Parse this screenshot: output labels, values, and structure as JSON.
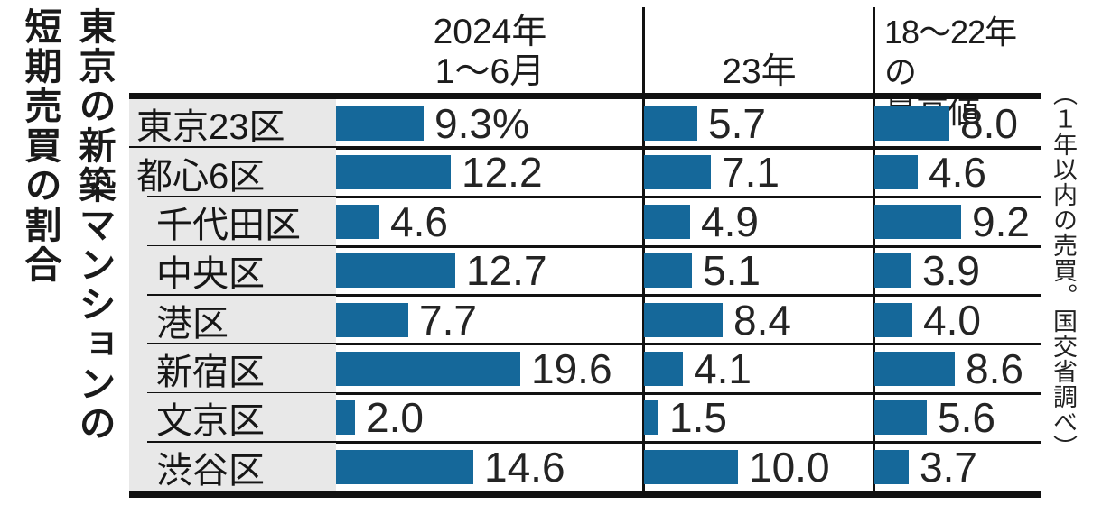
{
  "title": "東京の新築マンションの短期売買の割合",
  "title_lines": [
    "東京の新築マンションの",
    "短期売買の割合"
  ],
  "source_note": "（１年以内の売買。国交省調べ）",
  "columns": [
    {
      "line1": "2024年",
      "line2": "1〜6月"
    },
    {
      "line1": "23年"
    },
    {
      "line1": "18〜22年の",
      "line2": "最高値"
    }
  ],
  "rows": [
    {
      "label": "東京23区",
      "indent": false,
      "display": [
        "9.3%",
        "5.7",
        "8.0"
      ],
      "values": [
        9.3,
        5.7,
        8.0
      ]
    },
    {
      "label": "都心6区",
      "indent": false,
      "display": [
        "12.2",
        "7.1",
        "4.6"
      ],
      "values": [
        12.2,
        7.1,
        4.6
      ]
    },
    {
      "label": "千代田区",
      "indent": true,
      "display": [
        "4.6",
        "4.9",
        "9.2"
      ],
      "values": [
        4.6,
        4.9,
        9.2
      ]
    },
    {
      "label": "中央区",
      "indent": true,
      "display": [
        "12.7",
        "5.1",
        "3.9"
      ],
      "values": [
        12.7,
        5.1,
        3.9
      ]
    },
    {
      "label": "港区",
      "indent": true,
      "display": [
        "7.7",
        "8.4",
        "4.0"
      ],
      "values": [
        7.7,
        8.4,
        4.0
      ]
    },
    {
      "label": "新宿区",
      "indent": true,
      "display": [
        "19.6",
        "4.1",
        "8.6"
      ],
      "values": [
        19.6,
        4.1,
        8.6
      ]
    },
    {
      "label": "文京区",
      "indent": true,
      "display": [
        "2.0",
        "1.5",
        "5.6"
      ],
      "values": [
        2.0,
        1.5,
        5.6
      ]
    },
    {
      "label": "渋谷区",
      "indent": true,
      "display": [
        "14.6",
        "10.0",
        "3.7"
      ],
      "values": [
        14.6,
        10.0,
        3.7
      ]
    }
  ],
  "chart_data": {
    "type": "bar",
    "orientation": "horizontal",
    "unit": "%",
    "title": "東京の新築マンションの短期売買の割合",
    "annotation": "（１年以内の売買。国交省調べ）",
    "categories": [
      "東京23区",
      "都心6区",
      "千代田区",
      "中央区",
      "港区",
      "新宿区",
      "文京区",
      "渋谷区"
    ],
    "series": [
      {
        "name": "2024年1〜6月",
        "values": [
          9.3,
          12.2,
          4.6,
          12.7,
          7.7,
          19.6,
          2.0,
          14.6
        ]
      },
      {
        "name": "23年",
        "values": [
          5.7,
          7.1,
          4.9,
          5.1,
          8.4,
          4.1,
          1.5,
          10.0
        ]
      },
      {
        "name": "18〜22年の最高値",
        "values": [
          8.0,
          4.6,
          9.2,
          3.9,
          4.0,
          8.6,
          5.6,
          3.7
        ]
      }
    ],
    "value_labels_shown": true,
    "first_value_label_has_percent_sign": true,
    "axis_shown": false,
    "legend_position": "column-headers"
  },
  "colors": {
    "bar": "#15689a",
    "label_background": "#e8e8e8",
    "rule": "#111111",
    "text": "#1c1c1c"
  }
}
